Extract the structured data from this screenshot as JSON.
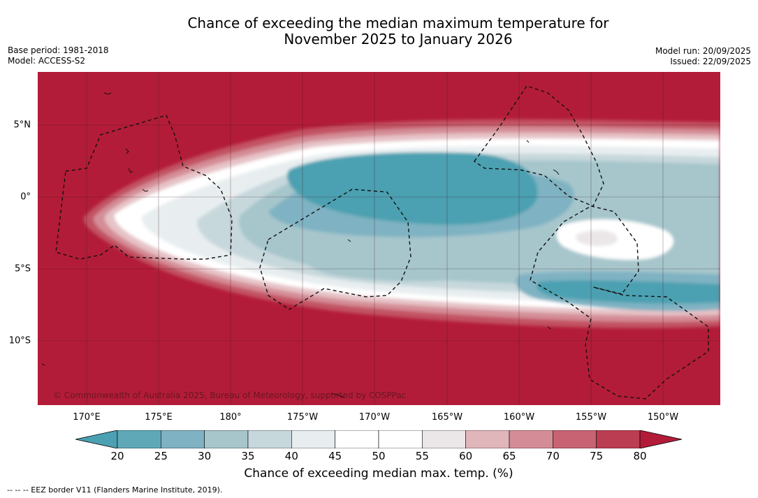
{
  "header": {
    "title_line1": "Chance of exceeding the median maximum temperature for",
    "title_line2": "November 2025 to January 2026",
    "base_period": "Base period: 1981-2018",
    "model": "Model: ACCESS-S2",
    "model_run": "Model run: 20/09/2025",
    "issued": "Issued: 22/09/2025"
  },
  "map": {
    "lat_labels": [
      "5°N",
      "0°",
      "5°S",
      "10°S"
    ],
    "lon_labels": [
      "170°E",
      "175°E",
      "180°",
      "175°W",
      "170°W",
      "165°W",
      "160°W",
      "155°W",
      "150°W"
    ],
    "copyright": "© Commonwealth of Australia 2025, Bureau of Meteorology, supported by COSPPac"
  },
  "colorbar": {
    "ticks": [
      "20",
      "25",
      "30",
      "35",
      "40",
      "45",
      "50",
      "55",
      "60",
      "65",
      "70",
      "75",
      "80"
    ],
    "label": "Chance of exceeding median max. temp. (%)",
    "colors": [
      "#5fa8b8",
      "#7fb2c2",
      "#a6c6cc",
      "#c7d8dc",
      "#e8eef0",
      "#ffffff",
      "#ffffff",
      "#ebe7e8",
      "#e0b6bb",
      "#d48d96",
      "#c76372",
      "#bb3d52"
    ],
    "low_extend_color": "#4ba0b1",
    "high_extend_color": "#b31c38"
  },
  "footnote": "--  --  -- EEZ border V11 (Flanders Marine Institute, 2019)."
}
